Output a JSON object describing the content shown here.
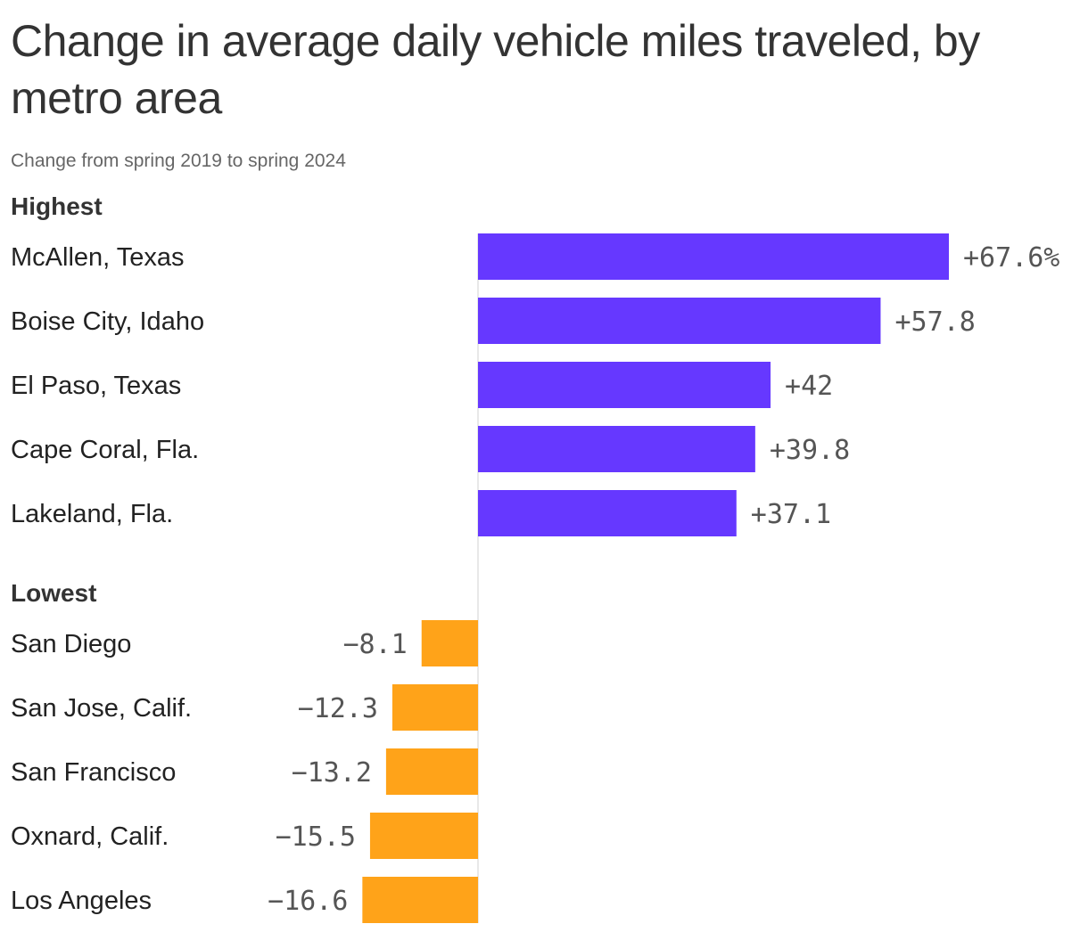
{
  "title": "Change in average daily vehicle miles traveled, by metro area",
  "subtitle": "Change from spring 2019 to spring 2024",
  "colors": {
    "highest": "#6638ff",
    "lowest": "#ffa319",
    "axis": "#d0d0d0",
    "text": "#333333",
    "value_text": "#555555"
  },
  "chart_data": [
    {
      "type": "bar",
      "orientation": "horizontal",
      "group": "Highest",
      "categories": [
        "McAllen, Texas",
        "Boise City, Idaho",
        "El Paso, Texas",
        "Cape Coral, Fla.",
        "Lakeland, Fla."
      ],
      "values": [
        67.6,
        57.8,
        42,
        39.8,
        37.1
      ],
      "value_labels": [
        "+67.6%",
        "+57.8",
        "+42",
        "+39.8",
        "+37.1"
      ],
      "color": "#6638ff"
    },
    {
      "type": "bar",
      "orientation": "horizontal",
      "group": "Lowest",
      "categories": [
        "San Diego",
        "San Jose, Calif.",
        "San Francisco",
        "Oxnard, Calif.",
        "Los Angeles"
      ],
      "values": [
        -8.1,
        -12.3,
        -13.2,
        -15.5,
        -16.6
      ],
      "value_labels": [
        "−8.1",
        "−12.3",
        "−13.2",
        "−15.5",
        "−16.6"
      ],
      "color": "#ffa319"
    }
  ]
}
